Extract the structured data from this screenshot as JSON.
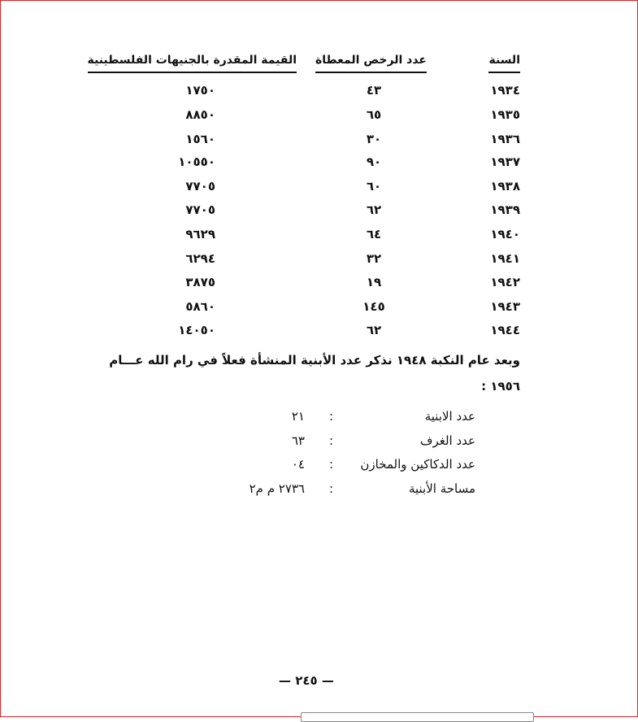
{
  "table": {
    "headers": [
      "السنة",
      "عدد الرخص المعطاة",
      "القيمة المقدرة بالجنيهات الفلسطينية"
    ],
    "rows": [
      [
        "١٩٣٤",
        "٤٣",
        "١٧٥٠"
      ],
      [
        "١٩٣٥",
        "٦٥",
        "٨٨٥٠"
      ],
      [
        "١٩٣٦",
        "٣٠",
        "١٥٦٠"
      ],
      [
        "١٩٣٧",
        "٩٠",
        "١٠٥٥٠"
      ],
      [
        "١٩٣٨",
        "٦٠",
        "٧٧٠٥"
      ],
      [
        "١٩٣٩",
        "٦٢",
        "٧٧٠٥"
      ],
      [
        "١٩٤٠",
        "٦٤",
        "٩٦٢٩"
      ],
      [
        "١٩٤١",
        "٣٢",
        "٦٢٩٤"
      ],
      [
        "١٩٤٢",
        "١٩",
        "٣٨٧٥"
      ],
      [
        "١٩٤٣",
        "١٤٥",
        "٥٨٦٠"
      ],
      [
        "١٩٤٤",
        "٦٢",
        "١٤٠٥٠"
      ]
    ]
  },
  "paragraph": {
    "line1": "وبعد عام النكبة ١٩٤٨ نذكر عدد الأبنية المنشأة فعلاً في رام الله عـــام",
    "line2": "١٩٥٦ :"
  },
  "stats": [
    {
      "label": "عدد الابنية",
      "sep": ":",
      "value": "٢١"
    },
    {
      "label": "عدد الغرف",
      "sep": ":",
      "value": "٦٣"
    },
    {
      "label": "عدد الدكاكين والمخازن",
      "sep": ":",
      "value": "٠٤"
    },
    {
      "label": "مساحة الأبنية",
      "sep": ":",
      "value": "٢٧٣٦ م م٢"
    }
  ],
  "page_number": "— ٢٤٥ —"
}
